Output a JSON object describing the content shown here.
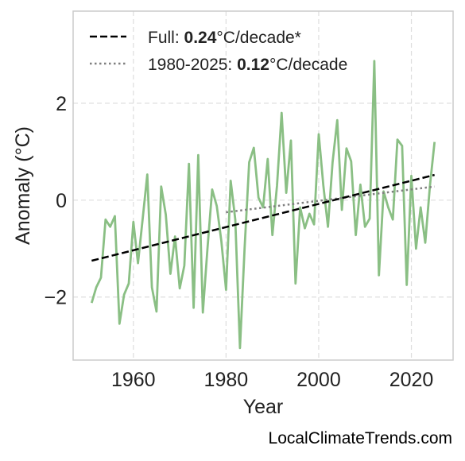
{
  "chart_data": {
    "type": "line",
    "xlabel": "Year",
    "ylabel": "Anomaly (°C)",
    "xlim": [
      1947,
      2029
    ],
    "ylim": [
      -3.3,
      3.9
    ],
    "xticks": [
      1960,
      1980,
      2000,
      2020
    ],
    "yticks": [
      -2,
      0,
      2
    ],
    "grid": true,
    "legend_position": "top-left",
    "colors": {
      "series": "#8abf84",
      "full_trend": "#000000",
      "recent_trend": "#7f7f7f",
      "grid": "#dddddd",
      "frame": "#cccccc"
    },
    "series": [
      {
        "years": [
          1951,
          1952,
          1953,
          1954,
          1955,
          1956,
          1957,
          1958,
          1959,
          1960,
          1961,
          1962,
          1963,
          1964,
          1965,
          1966,
          1967,
          1968,
          1969,
          1970,
          1971,
          1972,
          1973,
          1974,
          1975,
          1976,
          1977,
          1978,
          1979,
          1980,
          1981,
          1982,
          1983,
          1984,
          1985,
          1986,
          1987,
          1988,
          1989,
          1990,
          1991,
          1992,
          1993,
          1994,
          1995,
          1996,
          1997,
          1998,
          1999,
          2000,
          2001,
          2002,
          2003,
          2004,
          2005,
          2006,
          2007,
          2008,
          2009,
          2010,
          2011,
          2012,
          2013,
          2014,
          2015,
          2016,
          2017,
          2018,
          2019,
          2020,
          2021,
          2022,
          2023,
          2024,
          2025
        ],
        "values": [
          -2.12,
          -1.8,
          -1.6,
          -0.4,
          -0.55,
          -0.33,
          -2.55,
          -1.95,
          -1.72,
          -0.45,
          -1.3,
          -0.4,
          0.53,
          -1.8,
          -2.3,
          0.28,
          -0.3,
          -1.52,
          -0.75,
          -1.82,
          -1.35,
          0.75,
          -2.22,
          0.93,
          -2.32,
          -1.0,
          0.22,
          -0.12,
          -0.85,
          -1.85,
          0.4,
          -0.4,
          -3.05,
          -1.0,
          0.78,
          1.08,
          0.05,
          -0.15,
          0.85,
          -0.72,
          0.3,
          1.8,
          0.15,
          1.23,
          -1.72,
          -0.15,
          -0.58,
          -0.28,
          -0.5,
          1.36,
          0.3,
          -0.55,
          0.78,
          1.65,
          -0.2,
          1.07,
          0.8,
          -0.72,
          0.32,
          -0.55,
          -0.38,
          2.87,
          -1.55,
          0.18,
          -0.15,
          -0.4,
          1.25,
          1.12,
          -1.75,
          0.5,
          -1.0,
          -0.15,
          -0.88,
          0.3,
          1.2
        ]
      }
    ],
    "trend_lines": [
      {
        "x": [
          1951,
          2025
        ],
        "y": [
          -1.25,
          0.52
        ]
      },
      {
        "x": [
          1980,
          2025
        ],
        "y": [
          -0.25,
          0.28
        ]
      }
    ],
    "legend": [
      {
        "prefix": "Full: ",
        "value": "0.24",
        "suffix": "°C/decade*"
      },
      {
        "prefix": "1980-2025: ",
        "value": "0.12",
        "suffix": "°C/decade"
      }
    ]
  },
  "footer": {
    "site": "LocalClimateTrends.com"
  }
}
